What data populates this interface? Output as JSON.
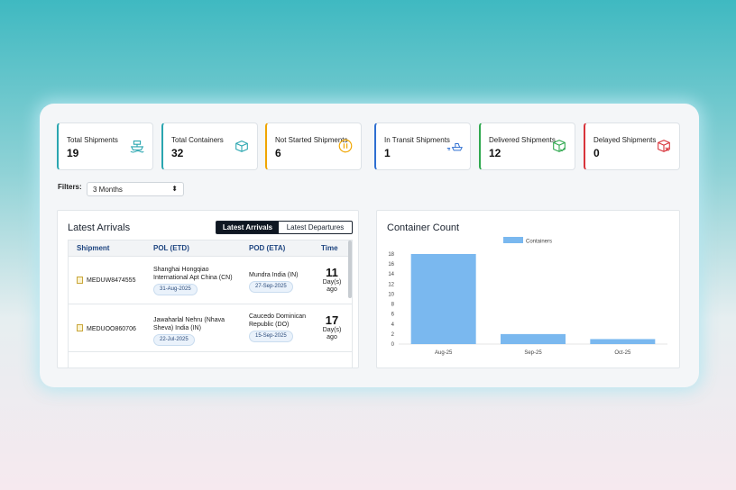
{
  "cards": [
    {
      "label": "Total Shipments",
      "value": "19",
      "icon": "ship-icon",
      "color": "#2aa6b0"
    },
    {
      "label": "Total Containers",
      "value": "32",
      "icon": "container-icon",
      "color": "#2aa6b0"
    },
    {
      "label": "Not Started Shipments",
      "value": "6",
      "icon": "pause-icon",
      "color": "#f0a500"
    },
    {
      "label": "In Transit Shipments",
      "value": "1",
      "icon": "transit-ship-icon",
      "color": "#2f6fd1"
    },
    {
      "label": "Delivered Shipments",
      "value": "12",
      "icon": "delivered-box-icon",
      "color": "#2fa84f"
    },
    {
      "label": "Delayed Shipments",
      "value": "0",
      "icon": "delayed-box-icon",
      "color": "#d8343b"
    }
  ],
  "filters": {
    "label": "Filters:",
    "selected": "3 Months"
  },
  "arrivals": {
    "title": "Latest Arrivals",
    "tabs": [
      "Latest Arrivals",
      "Latest Departures"
    ],
    "columns": [
      "Shipment",
      "POL (ETD)",
      "POD (ETA)",
      "Time"
    ],
    "rows": [
      {
        "shipment": "MEDUW8474555",
        "pol": "Shanghai Hongqiao International Apt China (CN)",
        "pol_date": "31-Aug-2025",
        "pod": "Mundra India (IN)",
        "pod_date": "27-Sep-2025",
        "days": "11",
        "unit": "Day(s) ago"
      },
      {
        "shipment": "MEDUOO860706",
        "pol": "Jawaharlal Nehru (Nhava Sheva) India (IN)",
        "pol_date": "22-Jul-2025",
        "pod": "Caucedo Dominican Republic (DO)",
        "pod_date": "15-Sep-2025",
        "days": "17",
        "unit": "Day(s) ago"
      }
    ]
  },
  "chart_data": {
    "type": "bar",
    "title": "Container Count",
    "categories": [
      "Aug-25",
      "Sep-25",
      "Oct-25"
    ],
    "series": [
      {
        "name": "Containers",
        "values": [
          18,
          2,
          1
        ],
        "color": "#7ab8ef"
      }
    ],
    "ylim": [
      0,
      18
    ],
    "yticks": [
      0,
      2,
      4,
      6,
      8,
      10,
      12,
      14,
      16,
      18
    ],
    "legend": "top-center",
    "grid": false
  }
}
